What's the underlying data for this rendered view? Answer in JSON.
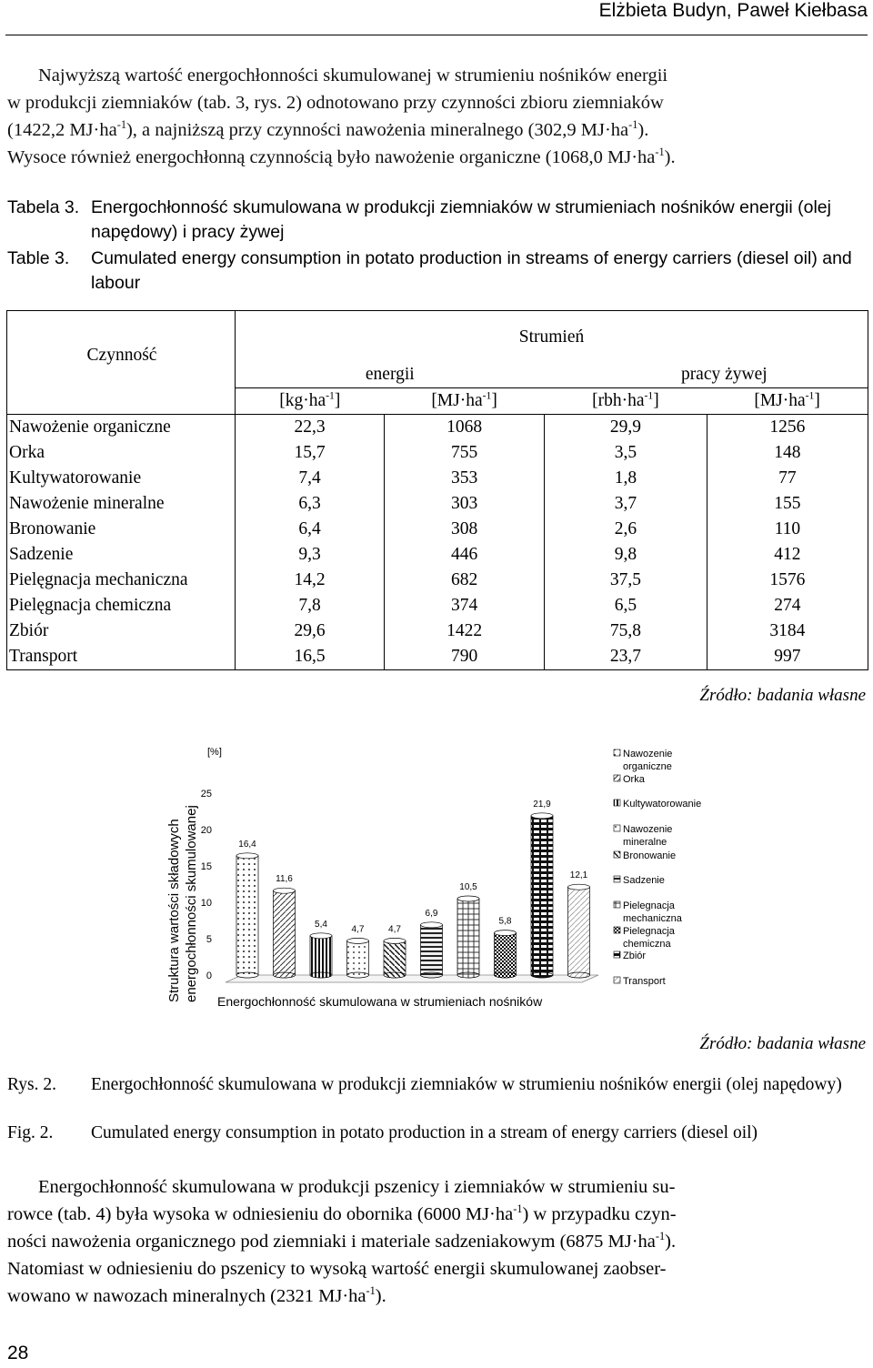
{
  "header": {
    "authors": "Elżbieta Budyn, Paweł Kiełbasa"
  },
  "intro": {
    "l1": "Najwyższą wartość energochłonności skumulowanej w strumieniu nośników energii",
    "l2a": "w produkcji ziemniaków (tab. 3, rys. 2) odnotowano przy czynności zbioru ziemniaków",
    "l3a": "(1422,2 MJ·ha",
    "l3b": "), a najniższą przy czynności nawożenia mineralnego (302,9 MJ·ha",
    "l3c": ").",
    "l4a": "Wysoce również energochłonną czynnością było nawożenie organiczne (1068,0 MJ·ha",
    "l4b": ").",
    "sup": "-1"
  },
  "table_caption": {
    "pl_label": "Tabela 3.",
    "pl_text": "Energochłonność skumulowana w produkcji ziemniaków w strumieniach nośników energii (olej napędowy) i pracy żywej",
    "en_label": "Table 3.",
    "en_text": "Cumulated energy consumption in potato production in streams of energy carriers (diesel oil) and labour"
  },
  "table": {
    "h_activity": "Czynność",
    "h_stream": "Strumień",
    "h_energy": "energii",
    "h_labour": "pracy żywej",
    "u1": "[kg·ha",
    "u2": "[MJ·ha",
    "u3": "[rbh·ha",
    "u4": "[MJ·ha",
    "u_sup": "-1",
    "u_end": "]",
    "rows": [
      {
        "name": "Nawożenie organiczne",
        "kg": "22,3",
        "mj": "1068",
        "rbh": "29,9",
        "mjl": "1256"
      },
      {
        "name": "Orka",
        "kg": "15,7",
        "mj": "755",
        "rbh": "3,5",
        "mjl": "148"
      },
      {
        "name": "Kultywatorowanie",
        "kg": "7,4",
        "mj": "353",
        "rbh": "1,8",
        "mjl": "77"
      },
      {
        "name": "Nawożenie mineralne",
        "kg": "6,3",
        "mj": "303",
        "rbh": "3,7",
        "mjl": "155"
      },
      {
        "name": "Bronowanie",
        "kg": "6,4",
        "mj": "308",
        "rbh": "2,6",
        "mjl": "110"
      },
      {
        "name": "Sadzenie",
        "kg": "9,3",
        "mj": "446",
        "rbh": "9,8",
        "mjl": "412"
      },
      {
        "name": "Pielęgnacja mechaniczna",
        "kg": "14,2",
        "mj": "682",
        "rbh": "37,5",
        "mjl": "1576"
      },
      {
        "name": "Pielęgnacja chemiczna",
        "kg": "7,8",
        "mj": "374",
        "rbh": "6,5",
        "mjl": "274"
      },
      {
        "name": "Zbiór",
        "kg": "29,6",
        "mj": "1422",
        "rbh": "75,8",
        "mjl": "3184"
      },
      {
        "name": "Transport",
        "kg": "16,5",
        "mj": "790",
        "rbh": "23,7",
        "mjl": "997"
      }
    ],
    "source": "Źródło: badania własne"
  },
  "chart_data": {
    "type": "bar",
    "ylabel": "Struktura wartości składowych energochłonności skumulowanej",
    "yunit": "[%]",
    "xlabel": "Energochłonność skumulowana w strumieniach nośników",
    "ylim": [
      0,
      25
    ],
    "yticks": [
      "0",
      "5",
      "10",
      "15",
      "20",
      "25"
    ],
    "categories": [
      "Nawozenie organiczne",
      "Orka",
      "Kultywatorowanie",
      "Nawozenie mineralne",
      "Bronowanie",
      "Sadzenie",
      "Pielegnacja mechaniczna",
      "Pielegnacja chemiczna",
      "Zbiór",
      "Transport"
    ],
    "values": [
      16.4,
      11.6,
      5.4,
      4.7,
      4.7,
      6.9,
      10.5,
      5.8,
      21.9,
      12.1
    ],
    "value_labels": [
      "16,4",
      "11,6",
      "5,4",
      "4,7",
      "4,7",
      "6,9",
      "10,5",
      "5,8",
      "21,9",
      "12,1"
    ],
    "legend_labels": [
      "Nawozenie organiczne",
      "Orka",
      "Kultywatorowanie",
      "Nawozenie mineralne",
      "Bronowanie",
      "Sadzenie",
      "Pielegnacja mechaniczna",
      "Pielegnacja chemiczna",
      "Zbiór",
      "Transport"
    ],
    "legend_position": "right",
    "grid": false,
    "source": "Źródło: badania własne"
  },
  "figure_caption": {
    "pl_label": "Rys. 2.",
    "pl_text": "Energochłonność skumulowana w produkcji ziemniaków w strumieniu nośników energii (olej napędowy)",
    "en_label": "Fig. 2.",
    "en_text": "Cumulated energy consumption in potato production in a stream of energy carriers (diesel oil)"
  },
  "closing": {
    "l1": "Energochłonność skumulowana w produkcji pszenicy i ziemniaków w strumieniu su-",
    "l2a": "rowce (tab. 4) była wysoka w odniesieniu do obornika (6000 MJ·ha",
    "l2b": ") w przypadku czyn-",
    "l3a": "ności nawożenia organicznego pod ziemniaki i materiale sadzeniakowym (6875 MJ·ha",
    "l3b": ").",
    "l4": "Natomiast w odniesieniu do pszenicy to wysoką wartość energii skumulowanej zaobser-",
    "l5a": "wowano w nawozach mineralnych (2321 MJ·ha",
    "l5b": ").",
    "sup": "-1"
  },
  "page_number": "28"
}
